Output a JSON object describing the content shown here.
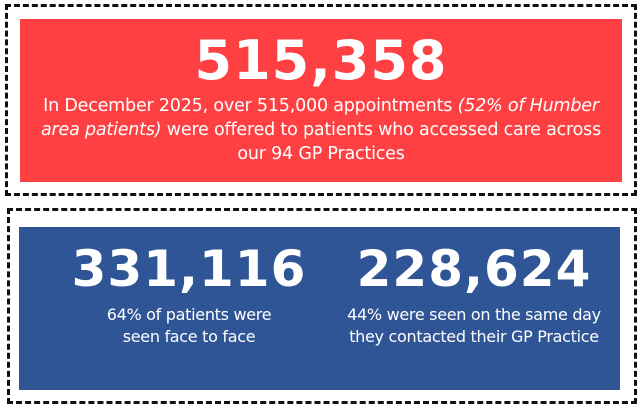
{
  "colors": {
    "red_panel": "#FF4043",
    "blue_panel": "#305596",
    "text": "#FFFFFF",
    "dash_border": "#111111"
  },
  "headline": {
    "value": "515,358",
    "text_before": "In December 2025, over 515,000 appointments ",
    "text_italic": "(52% of Humber area patients)",
    "text_after": " were offered to patients who accessed care across our 94 GP Practices"
  },
  "stats": [
    {
      "value": "331,116",
      "caption": "64% of patients were seen face to face"
    },
    {
      "value": "228,624",
      "caption": "44% were seen on the same day they contacted their GP Practice"
    }
  ]
}
